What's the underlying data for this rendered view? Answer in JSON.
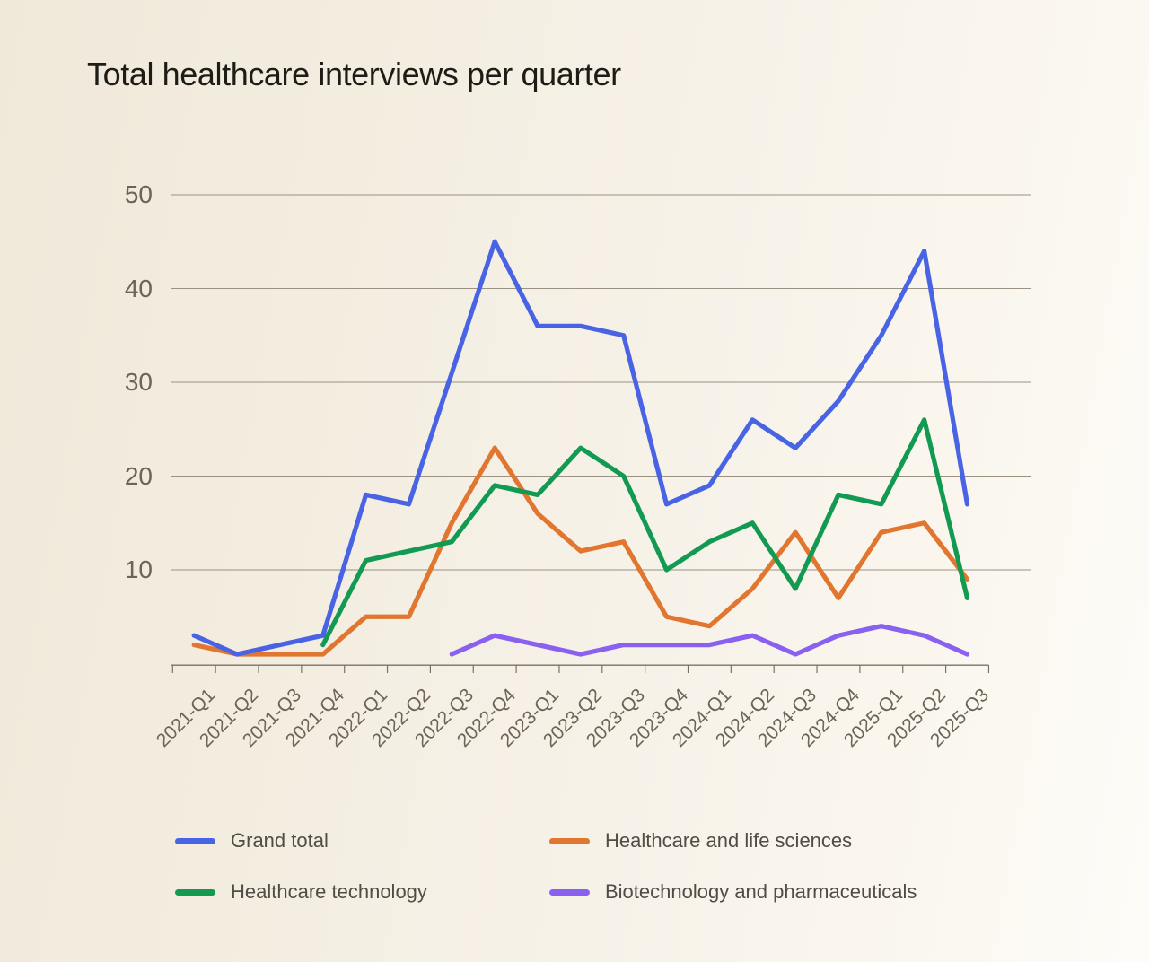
{
  "title": "Total healthcare interviews per quarter",
  "colors": {
    "background": "#f3ede0",
    "grid": "#9a9182",
    "axis": "#7a7365",
    "tick_label": "#6b6457",
    "title_text": "#1e1c17",
    "legend_text": "#514c45"
  },
  "chart_data": {
    "type": "line",
    "title": "Total healthcare interviews per quarter",
    "xlabel": "",
    "ylabel": "",
    "ylim": [
      0,
      50
    ],
    "y_ticks": [
      10,
      20,
      30,
      40,
      50
    ],
    "grid": true,
    "legend_position": "bottom",
    "categories": [
      "2021-Q1",
      "2021-Q2",
      "2021-Q3",
      "2021-Q4",
      "2022-Q1",
      "2022-Q2",
      "2022-Q3",
      "2022-Q4",
      "2023-Q1",
      "2023-Q2",
      "2023-Q3",
      "2023-Q4",
      "2024-Q1",
      "2024-Q2",
      "2024-Q3",
      "2024-Q4",
      "2025-Q1",
      "2025-Q2",
      "2025-Q3"
    ],
    "series": [
      {
        "name": "Grand total",
        "color": "#4864e4",
        "values": [
          3,
          1,
          2,
          3,
          18,
          17,
          31,
          45,
          36,
          36,
          35,
          17,
          19,
          26,
          23,
          28,
          35,
          44,
          17
        ]
      },
      {
        "name": "Healthcare and life sciences",
        "color": "#e07630",
        "values": [
          2,
          1,
          1,
          1,
          5,
          5,
          15,
          23,
          16,
          12,
          13,
          5,
          4,
          8,
          14,
          7,
          14,
          15,
          9
        ]
      },
      {
        "name": "Healthcare technology",
        "color": "#129a52",
        "values": [
          null,
          null,
          null,
          2,
          11,
          12,
          13,
          19,
          18,
          23,
          20,
          10,
          13,
          15,
          8,
          18,
          17,
          26,
          7
        ]
      },
      {
        "name": "Biotechnology and pharmaceuticals",
        "color": "#8a60f0",
        "values": [
          null,
          null,
          null,
          null,
          null,
          null,
          1,
          3,
          2,
          1,
          2,
          2,
          2,
          3,
          1,
          3,
          4,
          3,
          1
        ]
      }
    ]
  },
  "legend": {
    "items": [
      {
        "label": "Grand total"
      },
      {
        "label": "Healthcare and life sciences"
      },
      {
        "label": "Healthcare technology"
      },
      {
        "label": "Biotechnology and pharmaceuticals"
      }
    ]
  }
}
